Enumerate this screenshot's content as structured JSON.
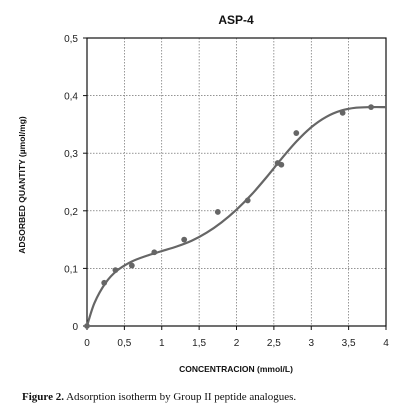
{
  "chart_data": {
    "type": "scatter",
    "title": "ASP-4",
    "xlabel": "CONCENTRACION (mmol/L)",
    "ylabel": "ADSORBED QUANTITY (µmol/mg)",
    "xlim": [
      0,
      4
    ],
    "ylim": [
      0,
      0.5
    ],
    "x_ticks": [
      0,
      0.5,
      1,
      1.5,
      2,
      2.5,
      3,
      3.5,
      4
    ],
    "x_tick_labels": [
      "0",
      "0,5",
      "1",
      "1,5",
      "2",
      "2,5",
      "3",
      "3,5",
      "4"
    ],
    "y_ticks": [
      0,
      0.1,
      0.2,
      0.3,
      0.4,
      0.5
    ],
    "y_tick_labels": [
      "0",
      "0,1",
      "0,2",
      "0,3",
      "0,4",
      "0,5"
    ],
    "grid": true,
    "series": [
      {
        "marker": "circle",
        "points": [
          {
            "x": 0.0,
            "y": 0.0
          },
          {
            "x": 0.23,
            "y": 0.075
          },
          {
            "x": 0.38,
            "y": 0.097
          },
          {
            "x": 0.6,
            "y": 0.105
          },
          {
            "x": 0.9,
            "y": 0.128
          },
          {
            "x": 1.3,
            "y": 0.15
          },
          {
            "x": 1.75,
            "y": 0.198
          },
          {
            "x": 2.15,
            "y": 0.218
          },
          {
            "x": 2.55,
            "y": 0.283
          },
          {
            "x": 2.6,
            "y": 0.28
          },
          {
            "x": 2.8,
            "y": 0.335
          },
          {
            "x": 3.42,
            "y": 0.37
          },
          {
            "x": 3.8,
            "y": 0.38
          }
        ]
      },
      {
        "type": "line",
        "points": [
          {
            "x": 0.0,
            "y": 0.0
          },
          {
            "x": 0.1,
            "y": 0.04
          },
          {
            "x": 0.25,
            "y": 0.075
          },
          {
            "x": 0.4,
            "y": 0.096
          },
          {
            "x": 0.6,
            "y": 0.112
          },
          {
            "x": 0.8,
            "y": 0.122
          },
          {
            "x": 1.0,
            "y": 0.13
          },
          {
            "x": 1.2,
            "y": 0.138
          },
          {
            "x": 1.4,
            "y": 0.148
          },
          {
            "x": 1.6,
            "y": 0.162
          },
          {
            "x": 1.8,
            "y": 0.18
          },
          {
            "x": 2.0,
            "y": 0.202
          },
          {
            "x": 2.2,
            "y": 0.228
          },
          {
            "x": 2.4,
            "y": 0.258
          },
          {
            "x": 2.6,
            "y": 0.29
          },
          {
            "x": 2.8,
            "y": 0.32
          },
          {
            "x": 3.0,
            "y": 0.345
          },
          {
            "x": 3.2,
            "y": 0.363
          },
          {
            "x": 3.4,
            "y": 0.374
          },
          {
            "x": 3.6,
            "y": 0.379
          },
          {
            "x": 3.8,
            "y": 0.38
          },
          {
            "x": 4.0,
            "y": 0.38
          }
        ]
      }
    ]
  },
  "caption": {
    "label": "Figure 2.",
    "text": " Adsorption isotherm by Group II peptide analogues."
  },
  "colors": {
    "curve": "#666666",
    "points": "#666666",
    "grid": "#555555",
    "axis": "#111111"
  }
}
